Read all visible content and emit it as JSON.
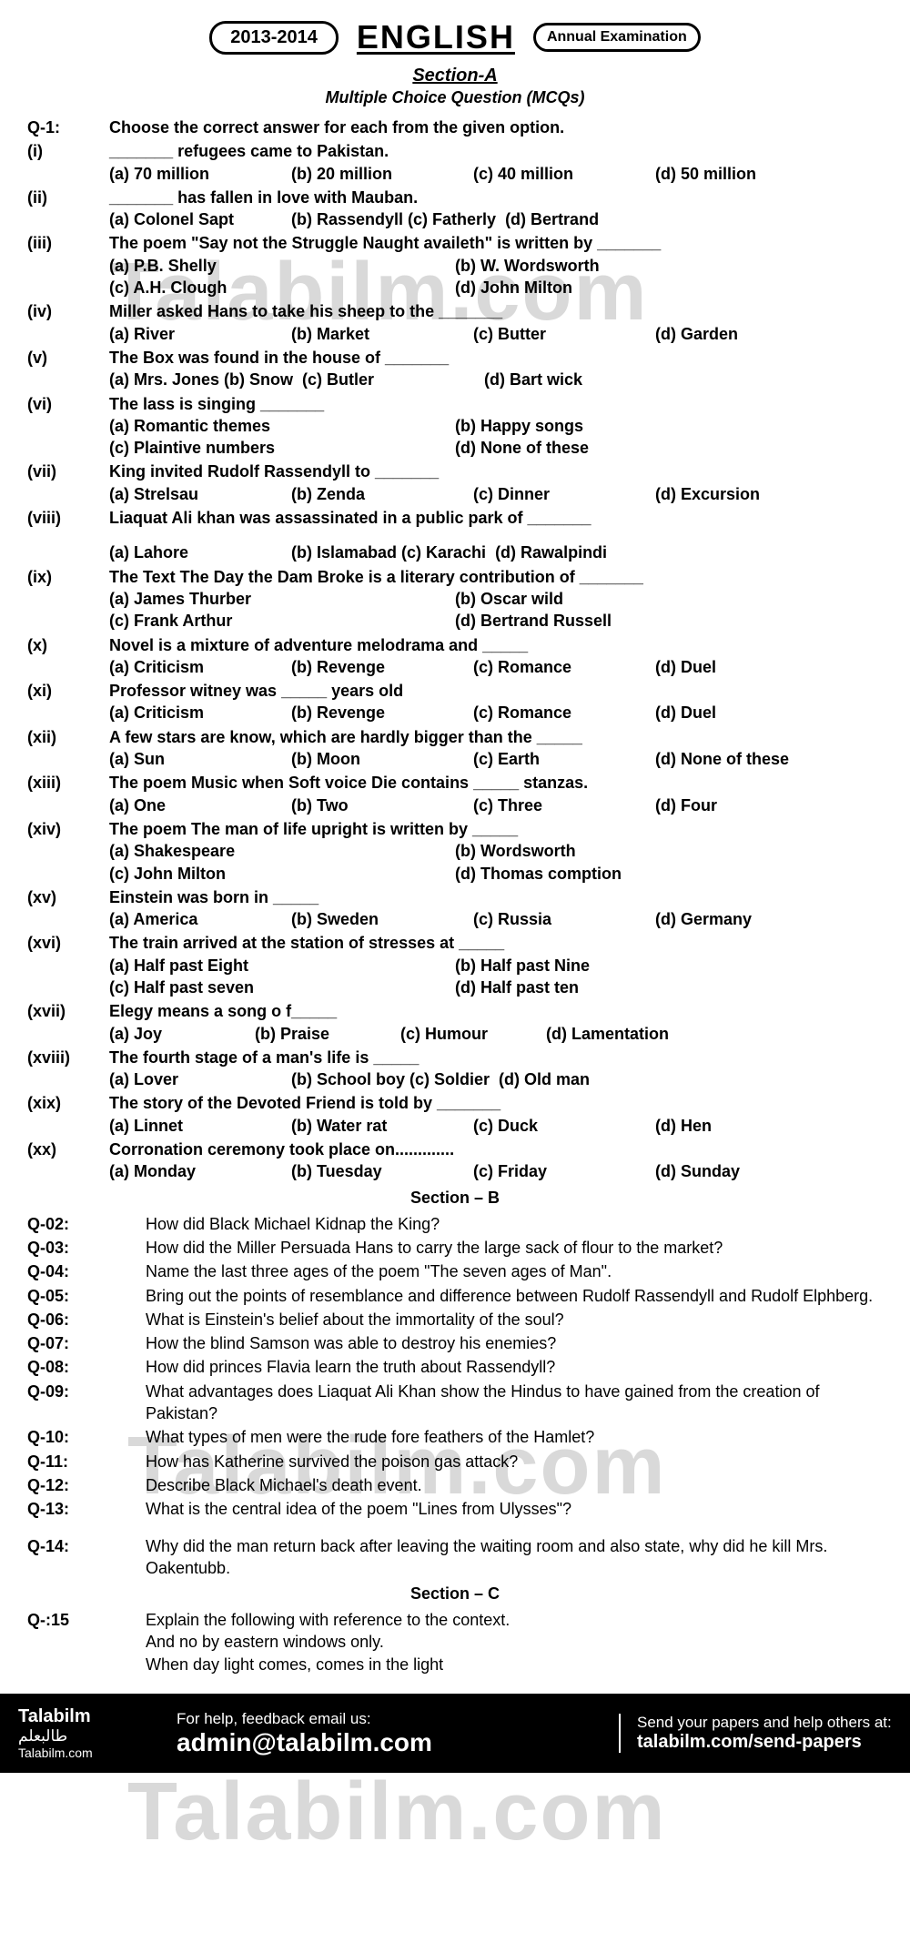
{
  "header": {
    "year": "2013-2014",
    "title": "ENGLISH",
    "exam": "Annual Examination"
  },
  "sectionA": {
    "title": "Section-A",
    "subtitle": "Multiple Choice Question (MCQs)",
    "q1_label": "Q-1:",
    "q1_text": "Choose the correct answer for each from the given option."
  },
  "mcq": [
    {
      "n": "(i)",
      "q": "_______ refugees came to Pakistan.",
      "opts": [
        "(a) 70 million",
        "(b) 20 million",
        "(c) 40 million",
        "(d) 50 million"
      ],
      "cols": 4
    },
    {
      "n": "(ii)",
      "q": "_______ has fallen in love with Mauban.",
      "opts": [
        "(a) Colonel Sapt",
        "(b) Rassendyll (c) Fatherly",
        "(d) Bertrand"
      ],
      "cols": 3
    },
    {
      "n": "(iii)",
      "q": "The poem \"Say not the Struggle Naught availeth\" is written by _______",
      "opts": [
        "(a) P.B. Shelly",
        "(b) W. Wordsworth",
        "(c) A.H. Clough",
        "(d) John Milton"
      ],
      "cols": 2
    },
    {
      "n": "(iv)",
      "q": "Miller asked Hans to take his sheep to the _______",
      "opts": [
        "(a) River",
        "(b) Market",
        "(c) Butter",
        "(d) Garden"
      ],
      "cols": 4
    },
    {
      "n": "(v)",
      "q": "The Box was found in the house of _______",
      "opts": [
        "(a) Mrs. Jones (b) Snow",
        "(c) Butler",
        "(d) Bart wick"
      ],
      "cols": 3
    },
    {
      "n": "(vi)",
      "q": "The lass is singing _______",
      "opts": [
        "(a) Romantic themes",
        "(b) Happy songs",
        "(c) Plaintive numbers",
        "(d) None of these"
      ],
      "cols": 2
    },
    {
      "n": "(vii)",
      "q": "King invited Rudolf Rassendyll to _______",
      "opts": [
        "(a) Strelsau",
        "(b) Zenda",
        "(c) Dinner",
        "(d) Excursion"
      ],
      "cols": 4
    },
    {
      "n": "(viii)",
      "q": "Liaquat Ali khan was assassinated in a public park of _______",
      "opts": [
        "(a) Lahore",
        "(b) Islamabad (c) Karachi",
        "(d) Rawalpindi"
      ],
      "cols": 3,
      "gap": true
    },
    {
      "n": "(ix)",
      "q": "The Text The Day the Dam Broke is a literary contribution of _______",
      "opts": [
        "(a) James Thurber",
        "(b) Oscar wild",
        "(c) Frank Arthur",
        "(d) Bertrand Russell"
      ],
      "cols": 2
    },
    {
      "n": "(x)",
      "q": "Novel is a mixture of adventure melodrama and _____",
      "opts": [
        "(a) Criticism",
        "(b) Revenge",
        "(c) Romance",
        "(d) Duel"
      ],
      "cols": 4
    },
    {
      "n": "(xi)",
      "q": "Professor witney was _____ years old",
      "opts": [
        "(a) Criticism",
        "(b) Revenge",
        "(c) Romance",
        "(d) Duel"
      ],
      "cols": 4
    },
    {
      "n": "(xii)",
      "q": "A few stars are know, which are hardly bigger than the _____",
      "opts": [
        "(a) Sun",
        "(b) Moon",
        "(c) Earth",
        "(d) None of these"
      ],
      "cols": 4
    },
    {
      "n": "(xiii)",
      "q": "The poem Music when Soft voice Die contains _____ stanzas.",
      "opts": [
        "(a) One",
        "(b) Two",
        "(c) Three",
        "(d) Four"
      ],
      "cols": 4
    },
    {
      "n": "(xiv)",
      "q": "The poem The man of life upright is written by _____",
      "opts": [
        "(a) Shakespeare",
        "(b) Wordsworth",
        "(c) John Milton",
        "(d) Thomas comption"
      ],
      "cols": 2
    },
    {
      "n": "(xv)",
      "q": "Einstein was born in _____",
      "opts": [
        "(a) America",
        "(b) Sweden",
        "(c) Russia",
        "(d) Germany"
      ],
      "cols": 4
    },
    {
      "n": "(xvi)",
      "q": "The train arrived at the station of stresses at _____",
      "opts": [
        "(a) Half past Eight",
        "(b) Half past Nine",
        "(c) Half past seven",
        "(d) Half past ten"
      ],
      "cols": 2
    },
    {
      "n": "(xvii)",
      "q": "Elegy means a song o f_____",
      "opts": [
        "(a) Joy",
        "(b) Praise",
        "(c) Humour",
        "(d) Lamentation"
      ],
      "cols": 4,
      "narrow": true
    },
    {
      "n": "(xviii)",
      "q": "The fourth stage of a man's life is _____",
      "opts": [
        "(a) Lover",
        "(b) School boy (c) Soldier",
        "(d) Old man"
      ],
      "cols": 3
    },
    {
      "n": "(xix)",
      "q": "The story of the Devoted Friend is told by _______",
      "opts": [
        "(a) Linnet",
        "(b) Water rat",
        "(c) Duck",
        "(d) Hen"
      ],
      "cols": 4
    },
    {
      "n": "(xx)",
      "q": "Corronation ceremony took place on.............",
      "opts": [
        "(a) Monday",
        "(b) Tuesday",
        "(c) Friday",
        "(d) Sunday"
      ],
      "cols": 4
    }
  ],
  "sectionB": {
    "title": "Section – B",
    "questions": [
      {
        "n": "Q-02:",
        "t": "How did Black Michael Kidnap the King?"
      },
      {
        "n": "Q-03:",
        "t": "How did the Miller Persuada Hans to carry the large sack of flour to the market?"
      },
      {
        "n": "Q-04:",
        "t": "Name the last three ages of the poem \"The seven ages of Man\"."
      },
      {
        "n": "Q-05:",
        "t": "Bring out the points of resemblance and difference between Rudolf Rassendyll and Rudolf Elphberg."
      },
      {
        "n": "Q-06:",
        "t": "What is Einstein's belief about the immortality of the soul?"
      },
      {
        "n": "Q-07:",
        "t": "How the blind Samson was able to destroy his enemies?"
      },
      {
        "n": "Q-08:",
        "t": "How did princes Flavia learn the truth about Rassendyll?"
      },
      {
        "n": "Q-09:",
        "t": "What advantages does Liaquat Ali Khan show the Hindus to have gained from the creation of Pakistan?"
      },
      {
        "n": "Q-10:",
        "t": "What types of men were the rude fore feathers of the Hamlet?"
      },
      {
        "n": "Q-11:",
        "t": "How has Katherine survived the poison gas attack?"
      },
      {
        "n": "Q-12:",
        "t": "Describe Black Michael's death event."
      },
      {
        "n": "Q-13:",
        "t": "What is the central idea of the poem \"Lines from Ulysses\"?"
      },
      {
        "n": "Q-14:",
        "t": "Why did the man return back after leaving the waiting room and also state, why did he kill Mrs. Oakentubb.",
        "gap": true
      }
    ]
  },
  "sectionC": {
    "title": "Section – C",
    "q15_label": "Q-:15",
    "lines": [
      "Explain the following with reference to the context.",
      "And no by eastern windows only.",
      "When day light comes, comes in the light"
    ]
  },
  "footer": {
    "brand": "Talabilm",
    "arabic": "طالبعلم",
    "site": "Talabilm.com",
    "help_text": "For help, feedback email us:",
    "email": "admin@talabilm.com",
    "send_text": "Send your papers and help others at:",
    "send_link": "talabilm.com/send-papers"
  },
  "watermark": "Talabilm.com"
}
